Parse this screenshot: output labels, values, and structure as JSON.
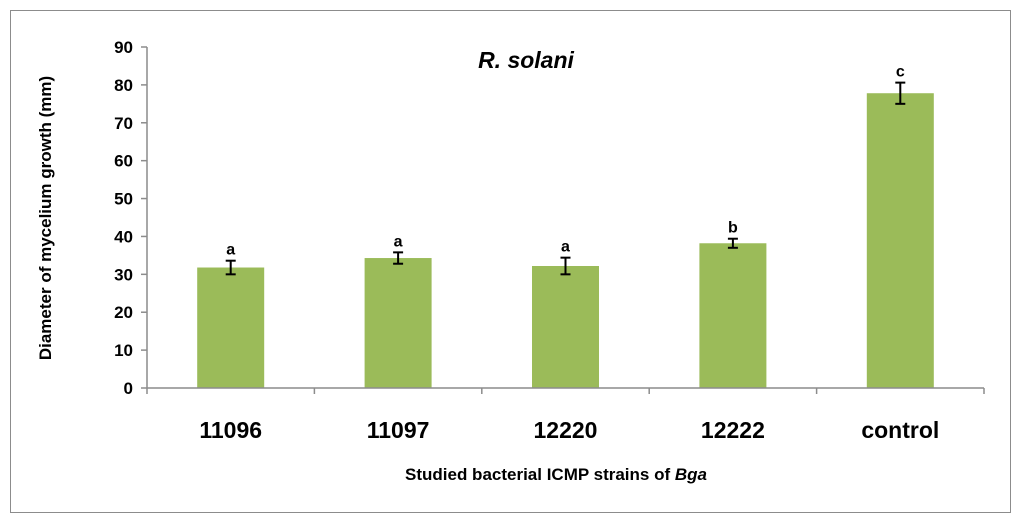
{
  "chart_data": {
    "type": "bar",
    "title": "R. solani",
    "xlabel": "Studied bacterial ICMP strains of ",
    "xlabel_italic": "Bga",
    "ylabel": "Diameter of mycelium growth (mm)",
    "categories": [
      "11096",
      "11097",
      "12220",
      "12222",
      "control"
    ],
    "values": [
      31.8,
      34.3,
      32.2,
      38.2,
      77.8
    ],
    "errors": [
      1.8,
      1.5,
      2.2,
      1.2,
      2.8
    ],
    "significance": [
      "a",
      "a",
      "a",
      "b",
      "c"
    ],
    "ylim": [
      0,
      90
    ],
    "yticks": [
      "0",
      "10",
      "20",
      "30",
      "40",
      "50",
      "60",
      "70",
      "80",
      "90"
    ],
    "grid": false,
    "legend": "none",
    "colors": {
      "bar": "#9bbb59",
      "error": "#000000",
      "axis": "#8c8c8c",
      "border": "#8c8c8c"
    }
  }
}
